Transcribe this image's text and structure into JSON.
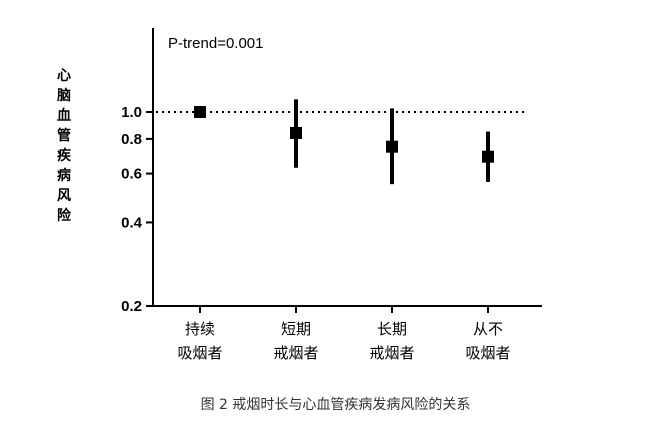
{
  "caption": "图 2 戒烟时长与心血管疾病发病风险的关系",
  "chart_data": {
    "type": "scatter",
    "subtype": "point-with-error-bars",
    "annotation": "P-trend=0.001",
    "ylabel": "心脑血管疾病风险",
    "y_scale": "log",
    "ylim": [
      0.2,
      2.0
    ],
    "y_ticks": [
      {
        "value": 0.2,
        "label": "0.2"
      },
      {
        "value": 0.4,
        "label": "0.4"
      },
      {
        "value": 0.6,
        "label": "0.6"
      },
      {
        "value": 0.8,
        "label": "0.8"
      },
      {
        "value": 1.0,
        "label": "1.0"
      }
    ],
    "reference_line": 1.0,
    "categories": [
      {
        "line1": "持续",
        "line2": "吸烟者"
      },
      {
        "line1": "短期",
        "line2": "戒烟者"
      },
      {
        "line1": "长期",
        "line2": "戒烟者"
      },
      {
        "line1": "从不",
        "line2": "吸烟者"
      }
    ],
    "points": [
      {
        "estimate": 1.0,
        "lower": 1.0,
        "upper": 1.0
      },
      {
        "estimate": 0.84,
        "lower": 0.63,
        "upper": 1.11
      },
      {
        "estimate": 0.75,
        "lower": 0.55,
        "upper": 1.03
      },
      {
        "estimate": 0.69,
        "lower": 0.56,
        "upper": 0.85
      }
    ],
    "grid": false,
    "legend": "none"
  }
}
